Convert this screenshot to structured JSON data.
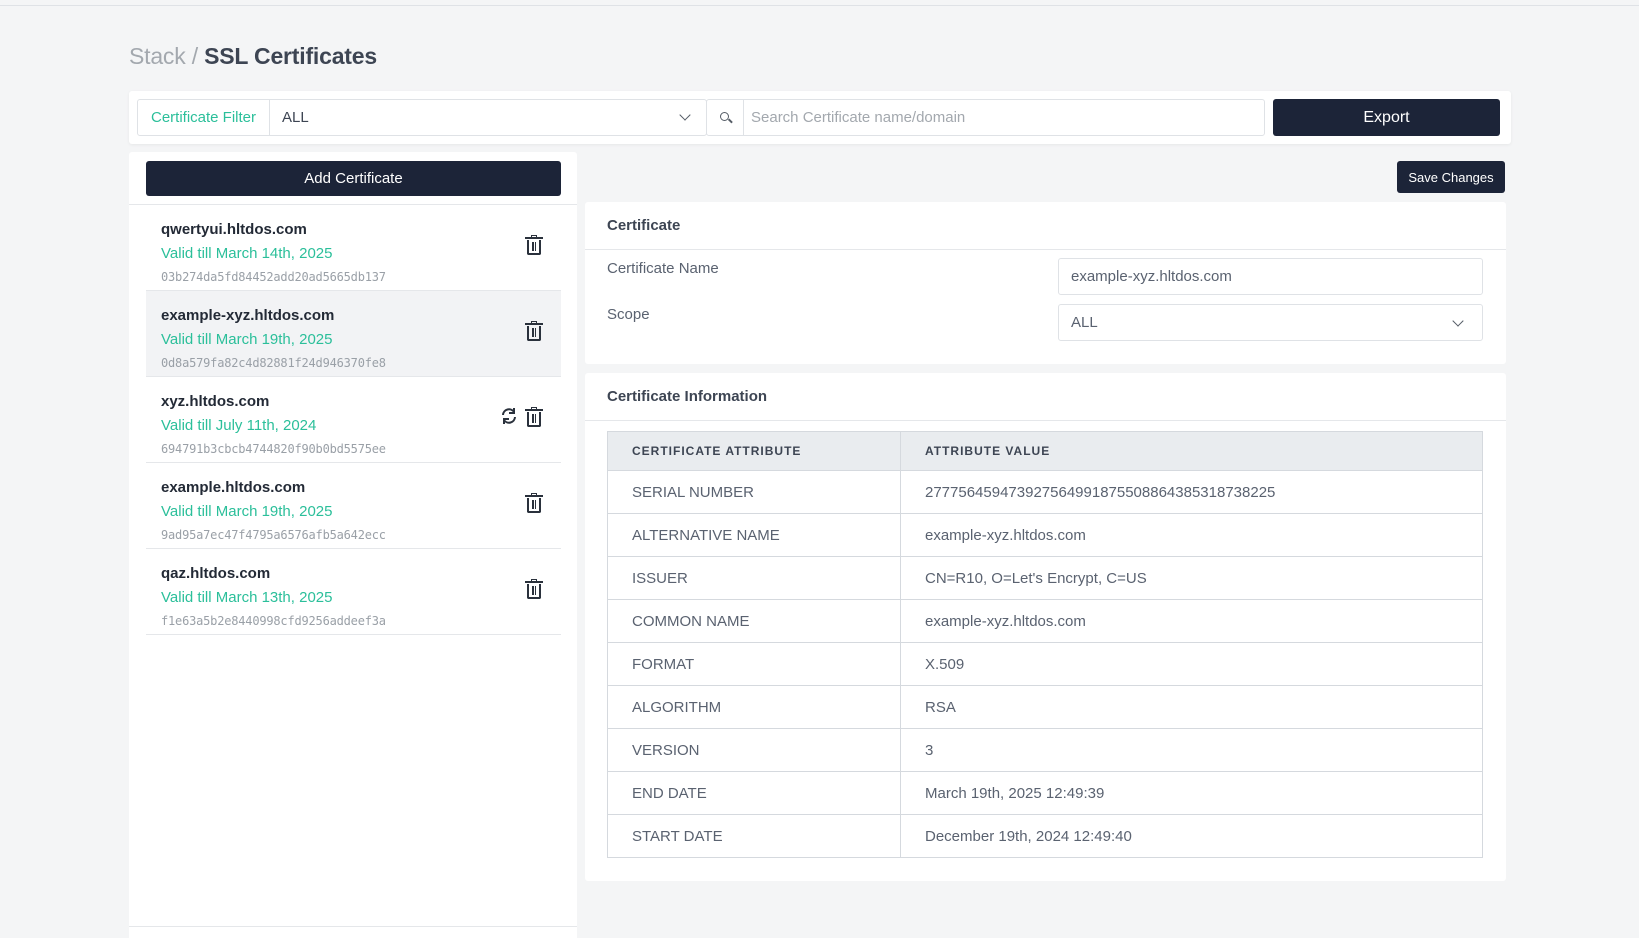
{
  "breadcrumb": {
    "parent": "Stack",
    "separator": "/",
    "current": "SSL Certificates"
  },
  "filter": {
    "label": "Certificate Filter",
    "value": "ALL"
  },
  "search": {
    "placeholder": "Search Certificate name/domain"
  },
  "toolbar": {
    "export_label": "Export",
    "add_label": "Add Certificate",
    "save_label": "Save Changes"
  },
  "certificates": [
    {
      "name": "qwertyui.hltdos.com",
      "valid": "Valid till March 14th, 2025",
      "hash": "03b274da5fd84452add20ad5665db137"
    },
    {
      "name": "example-xyz.hltdos.com",
      "valid": "Valid till March 19th, 2025",
      "hash": "0d8a579fa82c4d82881f24d946370fe8"
    },
    {
      "name": "xyz.hltdos.com",
      "valid": "Valid till July 11th, 2024",
      "hash": "694791b3cbcb4744820f90b0bd5575ee"
    },
    {
      "name": "example.hltdos.com",
      "valid": "Valid till March 19th, 2025",
      "hash": "9ad95a7ec47f4795a6576afb5a642ecc"
    },
    {
      "name": "qaz.hltdos.com",
      "valid": "Valid till March 13th, 2025",
      "hash": "f1e63a5b2e8440998cfd9256addeef3a"
    }
  ],
  "selected_index": 1,
  "certificate_card": {
    "title": "Certificate",
    "name_label": "Certificate Name",
    "name_value": "example-xyz.hltdos.com",
    "scope_label": "Scope",
    "scope_value": "ALL"
  },
  "info_card": {
    "title": "Certificate Information",
    "headers": [
      "CERTIFICATE ATTRIBUTE",
      "ATTRIBUTE VALUE"
    ],
    "rows": [
      [
        "SERIAL NUMBER",
        "277756459473927564991875508864385318738225"
      ],
      [
        "ALTERNATIVE NAME",
        "example-xyz.hltdos.com"
      ],
      [
        "ISSUER",
        "CN=R10, O=Let's Encrypt, C=US"
      ],
      [
        "COMMON NAME",
        "example-xyz.hltdos.com"
      ],
      [
        "FORMAT",
        "X.509"
      ],
      [
        "ALGORITHM",
        "RSA"
      ],
      [
        "VERSION",
        "3"
      ],
      [
        "END DATE",
        "March 19th, 2025 12:49:39"
      ],
      [
        "START DATE",
        "December 19th, 2024 12:49:40"
      ]
    ]
  },
  "colors": {
    "accent": "#2bbf9a",
    "primary_button": "#1c2438",
    "background": "#f4f5f6"
  }
}
